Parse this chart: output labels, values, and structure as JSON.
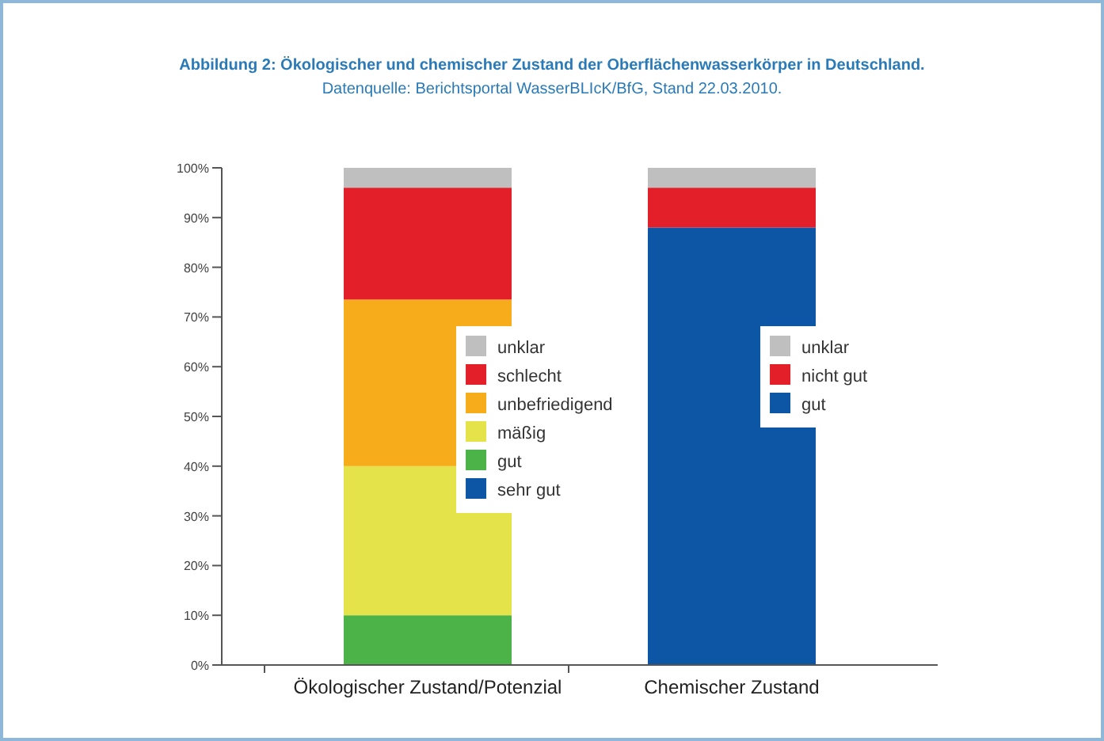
{
  "chart_data": {
    "type": "bar",
    "title": "Abbildung 2: Ökologischer und chemischer Zustand der Oberflächenwasserkörper in Deutschland.",
    "subtitle": "Datenquelle: Berichtsportal WasserBLIcK/BfG, Stand 22.03.2010.",
    "categories": [
      "Ökologischer Zustand/Potenzial",
      "Chemischer Zustand"
    ],
    "stacked": true,
    "legend": "right",
    "series": [
      {
        "name": "sehr gut",
        "color": "#0d56a6",
        "values": [
          0,
          null
        ]
      },
      {
        "name": "gut",
        "color": "#4cb348",
        "values": [
          10,
          null
        ]
      },
      {
        "name": "mäßig",
        "color": "#e5e34a",
        "values": [
          30,
          null
        ]
      },
      {
        "name": "unbefriedigend",
        "color": "#f7ad1b",
        "values": [
          33.5,
          null
        ]
      },
      {
        "name": "schlecht",
        "color": "#e3202a",
        "values": [
          22.5,
          null
        ]
      },
      {
        "name": "unklar",
        "color": "#bfbfbf",
        "values": [
          4,
          null
        ]
      },
      {
        "name": "gut",
        "color": "#0d56a6",
        "values": [
          null,
          88
        ]
      },
      {
        "name": "nicht gut",
        "color": "#e3202a",
        "values": [
          null,
          8
        ]
      },
      {
        "name": "unklar",
        "color": "#bfbfbf",
        "values": [
          null,
          4
        ]
      }
    ],
    "ylim": [
      0,
      100
    ],
    "yticks": [
      {
        "value": 0,
        "label": "0%"
      },
      {
        "value": 10,
        "label": "10%"
      },
      {
        "value": 20,
        "label": "20%"
      },
      {
        "value": 30,
        "label": "30%"
      },
      {
        "value": 40,
        "label": "40%"
      },
      {
        "value": 50,
        "label": "50%"
      },
      {
        "value": 60,
        "label": "60%"
      },
      {
        "value": 70,
        "label": "70%"
      },
      {
        "value": 80,
        "label": "80%"
      },
      {
        "value": 90,
        "label": "90%"
      },
      {
        "value": 100,
        "label": "100%"
      }
    ]
  }
}
